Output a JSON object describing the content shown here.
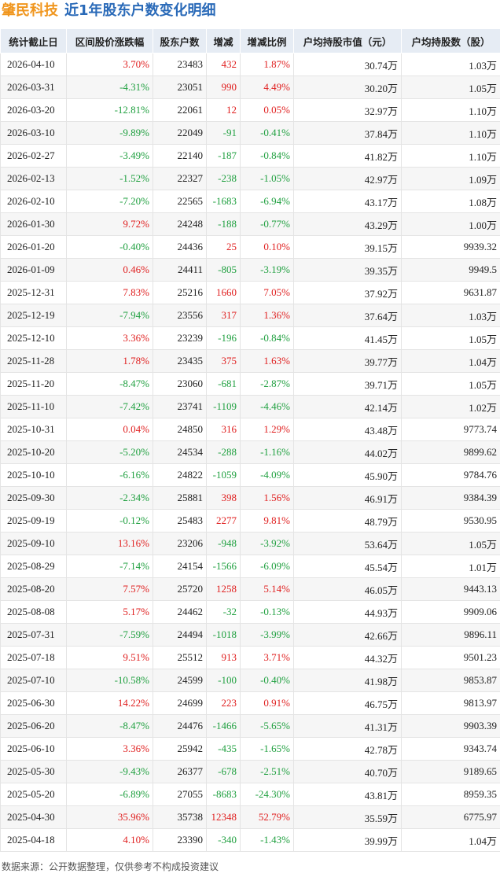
{
  "header": {
    "company": "肇民科技",
    "title": "近1年股东户数变化明细"
  },
  "table": {
    "header": [
      "统计截止日",
      "区间股价涨跌幅",
      "股东户数",
      "增减",
      "增减比例",
      "户均持股市值（元）",
      "户均持股数（股）"
    ],
    "rows": [
      [
        "2026-04-10",
        "3.70%",
        "23483",
        "432",
        "1.87%",
        "30.74万",
        "1.03万"
      ],
      [
        "2026-03-31",
        "-4.31%",
        "23051",
        "990",
        "4.49%",
        "30.20万",
        "1.05万"
      ],
      [
        "2026-03-20",
        "-12.81%",
        "22061",
        "12",
        "0.05%",
        "32.97万",
        "1.10万"
      ],
      [
        "2026-03-10",
        "-9.89%",
        "22049",
        "-91",
        "-0.41%",
        "37.84万",
        "1.10万"
      ],
      [
        "2026-02-27",
        "-3.49%",
        "22140",
        "-187",
        "-0.84%",
        "41.82万",
        "1.10万"
      ],
      [
        "2026-02-13",
        "-1.52%",
        "22327",
        "-238",
        "-1.05%",
        "42.97万",
        "1.09万"
      ],
      [
        "2026-02-10",
        "-7.20%",
        "22565",
        "-1683",
        "-6.94%",
        "43.17万",
        "1.08万"
      ],
      [
        "2026-01-30",
        "9.72%",
        "24248",
        "-188",
        "-0.77%",
        "43.29万",
        "1.00万"
      ],
      [
        "2026-01-20",
        "-0.40%",
        "24436",
        "25",
        "0.10%",
        "39.15万",
        "9939.32"
      ],
      [
        "2026-01-09",
        "0.46%",
        "24411",
        "-805",
        "-3.19%",
        "39.35万",
        "9949.5"
      ],
      [
        "2025-12-31",
        "7.83%",
        "25216",
        "1660",
        "7.05%",
        "37.92万",
        "9631.87"
      ],
      [
        "2025-12-19",
        "-7.94%",
        "23556",
        "317",
        "1.36%",
        "37.64万",
        "1.03万"
      ],
      [
        "2025-12-10",
        "3.36%",
        "23239",
        "-196",
        "-0.84%",
        "41.45万",
        "1.05万"
      ],
      [
        "2025-11-28",
        "1.78%",
        "23435",
        "375",
        "1.63%",
        "39.77万",
        "1.04万"
      ],
      [
        "2025-11-20",
        "-8.47%",
        "23060",
        "-681",
        "-2.87%",
        "39.71万",
        "1.05万"
      ],
      [
        "2025-11-10",
        "-7.42%",
        "23741",
        "-1109",
        "-4.46%",
        "42.14万",
        "1.02万"
      ],
      [
        "2025-10-31",
        "0.04%",
        "24850",
        "316",
        "1.29%",
        "43.48万",
        "9773.74"
      ],
      [
        "2025-10-20",
        "-5.20%",
        "24534",
        "-288",
        "-1.16%",
        "44.02万",
        "9899.62"
      ],
      [
        "2025-10-10",
        "-6.16%",
        "24822",
        "-1059",
        "-4.09%",
        "45.90万",
        "9784.76"
      ],
      [
        "2025-09-30",
        "-2.34%",
        "25881",
        "398",
        "1.56%",
        "46.91万",
        "9384.39"
      ],
      [
        "2025-09-19",
        "-0.12%",
        "25483",
        "2277",
        "9.81%",
        "48.79万",
        "9530.95"
      ],
      [
        "2025-09-10",
        "13.16%",
        "23206",
        "-948",
        "-3.92%",
        "53.64万",
        "1.05万"
      ],
      [
        "2025-08-29",
        "-7.14%",
        "24154",
        "-1566",
        "-6.09%",
        "45.54万",
        "1.01万"
      ],
      [
        "2025-08-20",
        "7.57%",
        "25720",
        "1258",
        "5.14%",
        "46.05万",
        "9443.13"
      ],
      [
        "2025-08-08",
        "5.17%",
        "24462",
        "-32",
        "-0.13%",
        "44.93万",
        "9909.06"
      ],
      [
        "2025-07-31",
        "-7.59%",
        "24494",
        "-1018",
        "-3.99%",
        "42.66万",
        "9896.11"
      ],
      [
        "2025-07-18",
        "9.51%",
        "25512",
        "913",
        "3.71%",
        "44.32万",
        "9501.23"
      ],
      [
        "2025-07-10",
        "-10.58%",
        "24599",
        "-100",
        "-0.40%",
        "41.98万",
        "9853.87"
      ],
      [
        "2025-06-30",
        "14.22%",
        "24699",
        "223",
        "0.91%",
        "46.75万",
        "9813.97"
      ],
      [
        "2025-06-20",
        "-8.47%",
        "24476",
        "-1466",
        "-5.65%",
        "41.31万",
        "9903.39"
      ],
      [
        "2025-06-10",
        "3.36%",
        "25942",
        "-435",
        "-1.65%",
        "42.78万",
        "9343.74"
      ],
      [
        "2025-05-30",
        "-9.43%",
        "26377",
        "-678",
        "-2.51%",
        "40.70万",
        "9189.65"
      ],
      [
        "2025-05-20",
        "-6.89%",
        "27055",
        "-8683",
        "-24.30%",
        "43.81万",
        "8959.35"
      ],
      [
        "2025-04-30",
        "35.96%",
        "35738",
        "12348",
        "52.79%",
        "35.59万",
        "6775.97"
      ],
      [
        "2025-04-18",
        "4.10%",
        "23390",
        "-340",
        "-1.43%",
        "39.99万",
        "1.04万"
      ]
    ]
  },
  "footer": "数据来源：公开数据整理，仅供参考不构成投资建议"
}
